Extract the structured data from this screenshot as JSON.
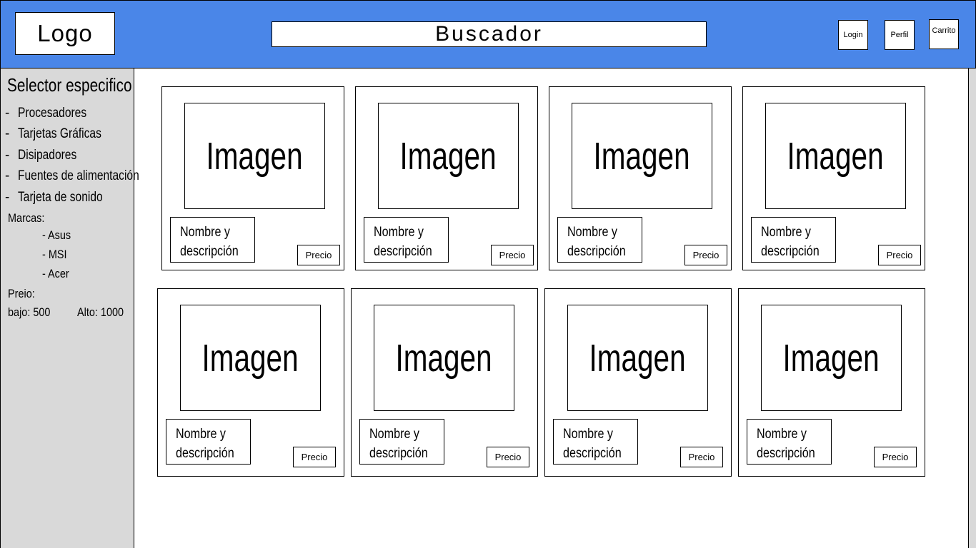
{
  "header": {
    "logo": "Logo",
    "search_label": "Buscador",
    "buttons": {
      "login": "Login",
      "perfil": "Perfil",
      "carrito": "Carrito"
    }
  },
  "sidebar": {
    "title": "Selector especifico",
    "categories": [
      "Procesadores",
      "Tarjetas Gráficas",
      "Disipadores",
      "Fuentes de alimentación",
      "Tarjeta de sonido"
    ],
    "brands_label": "Marcas:",
    "brands": [
      "- Asus",
      "- MSI",
      "- Acer"
    ],
    "price_label": "Preio:",
    "price_low": "bajo: 500",
    "price_high": "Alto: 1000"
  },
  "products": [
    {
      "image": "Imagen",
      "name_line1": "Nombre y",
      "name_line2": "descripción",
      "price": "Precio"
    },
    {
      "image": "Imagen",
      "name_line1": "Nombre y",
      "name_line2": "descripción",
      "price": "Precio"
    },
    {
      "image": "Imagen",
      "name_line1": "Nombre y",
      "name_line2": "descripción",
      "price": "Precio"
    },
    {
      "image": "Imagen",
      "name_line1": "Nombre y",
      "name_line2": "descripción",
      "price": "Precio"
    },
    {
      "image": "Imagen",
      "name_line1": "Nombre y",
      "name_line2": "descripción",
      "price": "Precio"
    },
    {
      "image": "Imagen",
      "name_line1": "Nombre y",
      "name_line2": "descripción",
      "price": "Precio"
    },
    {
      "image": "Imagen",
      "name_line1": "Nombre y",
      "name_line2": "descripción",
      "price": "Precio"
    },
    {
      "image": "Imagen",
      "name_line1": "Nombre y",
      "name_line2": "descripción",
      "price": "Precio"
    }
  ],
  "colors": {
    "header_bg": "#4a86e8",
    "sidebar_bg": "#d9d9d9"
  }
}
